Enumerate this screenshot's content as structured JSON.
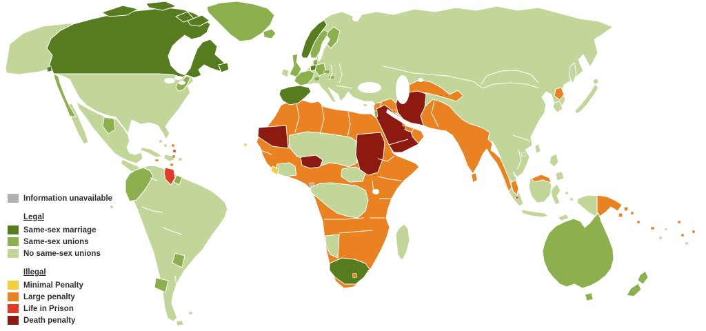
{
  "colors": {
    "marriage": "#567c1f",
    "unions": "#8db04e",
    "no_unions": "#c3d69a",
    "minimal": "#f3d03b",
    "large": "#ea8221",
    "life": "#e13a27",
    "death": "#8d1a10",
    "unavailable": "#b1b1b1"
  },
  "legend": {
    "unavailable_item": {
      "label": "Information unavailable",
      "category": "unavailable"
    },
    "sections": [
      {
        "heading": "Legal",
        "items": [
          {
            "label": "Same-sex marriage",
            "category": "marriage"
          },
          {
            "label": "Same-sex unions",
            "category": "unions"
          },
          {
            "label": "No same-sex unions",
            "category": "no_unions"
          }
        ]
      },
      {
        "heading": "Illegal",
        "items": [
          {
            "label": "Minimal Penalty",
            "category": "minimal"
          },
          {
            "label": "Large penalty",
            "category": "large"
          },
          {
            "label": "Life in Prison",
            "category": "life"
          },
          {
            "label": "Death penalty",
            "category": "death"
          }
        ]
      }
    ]
  },
  "regions": {
    "alaska": {
      "label": "Alaska",
      "category": "no_unions"
    },
    "usa": {
      "label": "United States",
      "category": "no_unions"
    },
    "us_west_coast": {
      "label": "US West Coast states",
      "category": "unions"
    },
    "us_northeast": {
      "label": "US Northeast states",
      "category": "unions"
    },
    "canada": {
      "label": "Canada",
      "category": "marriage"
    },
    "arctic_islands": {
      "label": "Canadian Arctic Islands",
      "category": "marriage"
    },
    "newfoundland": {
      "label": "Newfoundland",
      "category": "marriage"
    },
    "vancouver_island": {
      "label": "Vancouver Island",
      "category": "marriage"
    },
    "greenland": {
      "label": "Greenland",
      "category": "unions"
    },
    "iceland": {
      "label": "Iceland",
      "category": "unions"
    },
    "mexico": {
      "label": "Mexico",
      "category": "no_unions"
    },
    "mexico_coahuila": {
      "label": "Coahuila (Mexico)",
      "category": "unions"
    },
    "central_america": {
      "label": "Central America",
      "category": "no_unions"
    },
    "cuba": {
      "label": "Cuba",
      "category": "no_unions"
    },
    "hispaniola": {
      "label": "Hispaniola",
      "category": "no_unions"
    },
    "puerto_rico": {
      "label": "Puerto Rico",
      "category": "no_unions"
    },
    "bahamas": {
      "label": "Bahamas",
      "category": "no_unions"
    },
    "jamaica": {
      "label": "Jamaica",
      "category": "large"
    },
    "trinidad": {
      "label": "Trinidad and Tobago",
      "category": "large"
    },
    "lesser_antilles_orange": {
      "label": "Lesser Antilles",
      "category": "large"
    },
    "lesser_antilles_red": {
      "label": "Lesser Antilles (Barbados)",
      "category": "life"
    },
    "south_america": {
      "label": "South America",
      "category": "no_unions"
    },
    "colombia_ecuador": {
      "label": "Colombia and Ecuador",
      "category": "unions"
    },
    "guyana": {
      "label": "Guyana",
      "category": "life"
    },
    "french_guiana": {
      "label": "French Guiana",
      "category": "unions"
    },
    "southern_brazil": {
      "label": "Southern Brazil state",
      "category": "unions"
    },
    "argentina_province": {
      "label": "Argentine province",
      "category": "unions"
    },
    "tierra_del_fuego": {
      "label": "Tierra del Fuego",
      "category": "no_unions"
    },
    "falkland_islands": {
      "label": "Falkland Islands",
      "category": "no_unions"
    },
    "galapagos": {
      "label": "Galapagos",
      "category": "no_unions"
    },
    "eurasia": {
      "label": "Eurasia",
      "category": "no_unions"
    },
    "ireland": {
      "label": "Ireland",
      "category": "no_unions"
    },
    "uk": {
      "label": "United Kingdom",
      "category": "unions"
    },
    "norway": {
      "label": "Norway",
      "category": "marriage"
    },
    "sweden": {
      "label": "Sweden",
      "category": "unions"
    },
    "finland": {
      "label": "Finland",
      "category": "unions"
    },
    "denmark": {
      "label": "Denmark",
      "category": "unions"
    },
    "germany": {
      "label": "Germany",
      "category": "unions"
    },
    "france": {
      "label": "France",
      "category": "unions"
    },
    "switzerland": {
      "label": "Switzerland",
      "category": "unions"
    },
    "czech_republic": {
      "label": "Czech Republic",
      "category": "unions"
    },
    "hungary": {
      "label": "Hungary",
      "category": "unions"
    },
    "netherlands_belgium": {
      "label": "Netherlands and Belgium",
      "category": "marriage"
    },
    "spain_portugal": {
      "label": "Spain and Portugal",
      "category": "marriage"
    },
    "israel": {
      "label": "Israel",
      "category": "unions"
    },
    "cyprus": {
      "label": "Cyprus",
      "category": "no_unions"
    },
    "levant": {
      "label": "Levant",
      "category": "large"
    },
    "iraq": {
      "label": "Iraq",
      "category": "large"
    },
    "iran": {
      "label": "Iran",
      "category": "death"
    },
    "saudi_arabia_yemen": {
      "label": "Saudi Arabia and Yemen",
      "category": "death"
    },
    "oman": {
      "label": "Oman",
      "category": "large"
    },
    "uae": {
      "label": "United Arab Emirates",
      "category": "large"
    },
    "kuwait": {
      "label": "Kuwait",
      "category": "large"
    },
    "qatar": {
      "label": "Qatar",
      "category": "large"
    },
    "central_asia": {
      "label": "Central Asia",
      "category": "large"
    },
    "south_asia": {
      "label": "South Asia belt",
      "category": "large"
    },
    "sri_lanka": {
      "label": "Sri Lanka",
      "category": "large"
    },
    "north_korea": {
      "label": "North Korea",
      "category": "large"
    },
    "south_korea": {
      "label": "South Korea",
      "category": "no_unions"
    },
    "japan": {
      "label": "Japan",
      "category": "no_unions"
    },
    "sakhalin": {
      "label": "Sakhalin",
      "category": "no_unions"
    },
    "taiwan": {
      "label": "Taiwan",
      "category": "no_unions"
    },
    "hainan": {
      "label": "Hainan",
      "category": "no_unions"
    },
    "philippines": {
      "label": "Philippines",
      "category": "no_unions"
    },
    "malaysia": {
      "label": "Malaysia",
      "category": "large"
    },
    "singapore": {
      "label": "Singapore",
      "category": "life"
    },
    "indonesia": {
      "label": "Indonesia",
      "category": "no_unions"
    },
    "timor": {
      "label": "Timor",
      "category": "no_unions"
    },
    "papua_new_guinea": {
      "label": "Papua New Guinea",
      "category": "large"
    },
    "solomon_islands": {
      "label": "Solomon Islands",
      "category": "large"
    },
    "vanuatu": {
      "label": "Vanuatu",
      "category": "large"
    },
    "fiji": {
      "label": "Fiji",
      "category": "large"
    },
    "samoa": {
      "label": "Samoa",
      "category": "large"
    },
    "pacific_islands_orange": {
      "label": "Pacific islands",
      "category": "large"
    },
    "pacific_islands_green": {
      "label": "Pacific islands",
      "category": "no_unions"
    },
    "australia": {
      "label": "Australia",
      "category": "unions"
    },
    "tasmania": {
      "label": "Tasmania",
      "category": "unions"
    },
    "new_zealand": {
      "label": "New Zealand",
      "category": "unions"
    },
    "africa": {
      "label": "Africa",
      "category": "large"
    },
    "sinai": {
      "label": "Sinai",
      "category": "large"
    },
    "mauritania": {
      "label": "Mauritania",
      "category": "death"
    },
    "cape_verde": {
      "label": "Cape Verde",
      "category": "minimal"
    },
    "sahel_belt": {
      "label": "Mali, Niger and Chad",
      "category": "no_unions"
    },
    "central_african_republic": {
      "label": "Central African Republic",
      "category": "no_unions"
    },
    "cote_divoire_ghana": {
      "label": "Cote d'Ivoire and Ghana",
      "category": "no_unions"
    },
    "liberia": {
      "label": "Liberia",
      "category": "minimal"
    },
    "northern_nigeria": {
      "label": "Northern Nigeria",
      "category": "death"
    },
    "sudan": {
      "label": "Sudan",
      "category": "death"
    },
    "equatorial_guinea": {
      "label": "Equatorial Guinea",
      "category": "unavailable"
    },
    "congo_basin": {
      "label": "Congo Basin",
      "category": "no_unions"
    },
    "namibia": {
      "label": "Namibia",
      "category": "no_unions"
    },
    "south_africa": {
      "label": "South Africa",
      "category": "marriage"
    },
    "lesotho": {
      "label": "Lesotho",
      "category": "large"
    },
    "madagascar": {
      "label": "Madagascar",
      "category": "no_unions"
    }
  }
}
